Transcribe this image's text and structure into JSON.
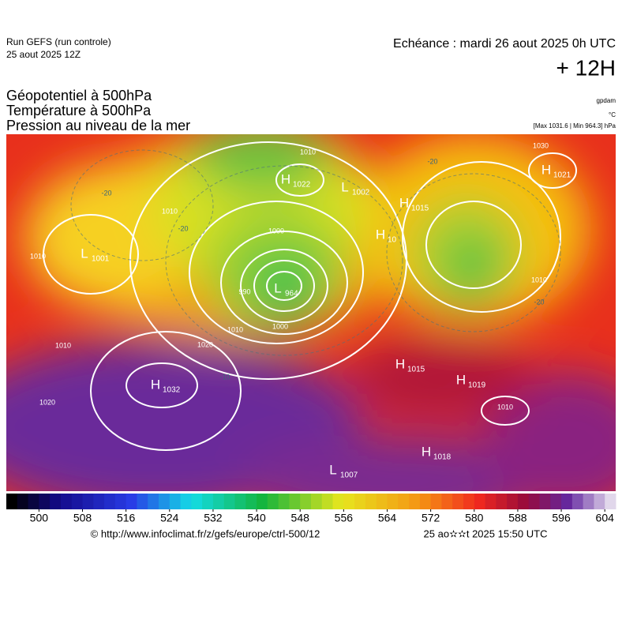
{
  "header": {
    "run": "Run GEFS (run controle)",
    "run_date": "25 aout 2025 12Z",
    "echeance": "Echéance : mardi 26 aout 2025 0h UTC",
    "lead": "+ 12H"
  },
  "titles": [
    "Géopotentiel à 500hPa",
    "Température à 500hPa",
    "Pression au niveau de la mer"
  ],
  "units": {
    "geopotential": "gpdam",
    "temperature": "°C",
    "pressure": "[Max 1031.6 | Min 964.3] hPa"
  },
  "centers": [
    {
      "kind": "L",
      "value": "1001"
    },
    {
      "kind": "H",
      "value": "1022"
    },
    {
      "kind": "L",
      "value": "1002"
    },
    {
      "kind": "H",
      "value": "1015"
    },
    {
      "kind": "H",
      "value": "10"
    },
    {
      "kind": "L",
      "value": "964"
    },
    {
      "kind": "H",
      "value": "1032"
    },
    {
      "kind": "H",
      "value": "1015"
    },
    {
      "kind": "H",
      "value": "1019"
    },
    {
      "kind": "H",
      "value": "1018"
    },
    {
      "kind": "L",
      "value": "1007"
    },
    {
      "kind": "H",
      "value": "1021"
    }
  ],
  "isobar_labels": [
    "1010",
    "1010",
    "1010",
    "1020",
    "1020",
    "1010",
    "1000",
    "1000",
    "990",
    "1010",
    "1030",
    "1010",
    "1010"
  ],
  "temperature_labels": [
    "-20",
    "-20",
    "-20",
    "-20",
    "-10"
  ],
  "colorbar": {
    "xlim": [
      494,
      606
    ],
    "xticks": [
      500,
      508,
      516,
      524,
      532,
      540,
      548,
      556,
      564,
      572,
      580,
      588,
      596,
      604
    ]
  },
  "footer": {
    "source": "© http://www.infoclimat.fr/z/gefs/europe/ctrl-500/12",
    "generated": "25 ao✫✫t 2025 15:50 UTC"
  }
}
